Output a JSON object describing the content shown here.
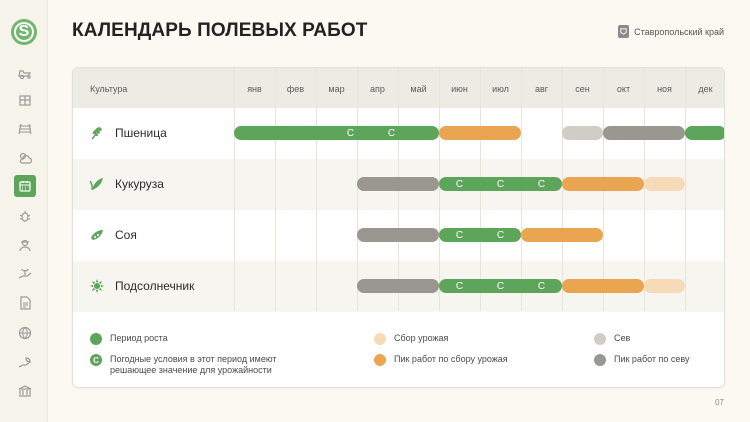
{
  "logo": {
    "letter": "S"
  },
  "title": "КАЛЕНДАРЬ ПОЛЕВЫХ РАБОТ",
  "region": "Ставропольский край",
  "page_number": "07",
  "sidebar": {
    "items": [
      {
        "icon": "tractor-icon",
        "active": false
      },
      {
        "icon": "warehouse-icon",
        "active": false
      },
      {
        "icon": "field-rows-icon",
        "active": false
      },
      {
        "icon": "weather-icon",
        "active": false
      },
      {
        "icon": "calendar-icon",
        "active": true
      },
      {
        "icon": "bug-icon",
        "active": false
      },
      {
        "icon": "farmer-icon",
        "active": false
      },
      {
        "icon": "hand-plant-icon",
        "active": false
      },
      {
        "icon": "document-icon",
        "active": false
      },
      {
        "icon": "globe-icon",
        "active": false
      },
      {
        "icon": "hand-leaf-icon",
        "active": false
      },
      {
        "icon": "bank-icon",
        "active": false
      }
    ]
  },
  "table": {
    "culture_header": "Культура",
    "months": [
      "янв",
      "фев",
      "мар",
      "апр",
      "май",
      "июн",
      "июл",
      "авг",
      "сен",
      "окт",
      "ноя",
      "дек"
    ],
    "crops": [
      {
        "name": "Пшеница",
        "icon": "wheat-icon",
        "bars": [
          {
            "start": 1,
            "end": 5,
            "type": "growth",
            "marks": [
              "С",
              "С"
            ],
            "marks_offset": 3
          },
          {
            "start": 6,
            "end": 7,
            "type": "harvest_peak"
          },
          {
            "start": 9,
            "end": 9,
            "type": "sowing"
          },
          {
            "start": 10,
            "end": 11,
            "type": "sowing_peak"
          },
          {
            "start": 12,
            "end": 12,
            "type": "growth"
          }
        ]
      },
      {
        "name": "Кукуруза",
        "icon": "corn-icon",
        "bars": [
          {
            "start": 4,
            "end": 5,
            "type": "sowing_peak"
          },
          {
            "start": 6,
            "end": 8,
            "type": "growth",
            "marks": [
              "С",
              "С",
              "С"
            ]
          },
          {
            "start": 9,
            "end": 10,
            "type": "harvest_peak"
          },
          {
            "start": 11,
            "end": 11,
            "type": "harvest"
          }
        ]
      },
      {
        "name": "Соя",
        "icon": "soy-icon",
        "bars": [
          {
            "start": 4,
            "end": 5,
            "type": "sowing_peak"
          },
          {
            "start": 6,
            "end": 7,
            "type": "growth",
            "marks": [
              "С",
              "С"
            ]
          },
          {
            "start": 8,
            "end": 9,
            "type": "harvest_peak"
          }
        ]
      },
      {
        "name": "Подсолнечник",
        "icon": "sunflower-icon",
        "bars": [
          {
            "start": 4,
            "end": 5,
            "type": "sowing_peak"
          },
          {
            "start": 6,
            "end": 8,
            "type": "growth",
            "marks": [
              "С",
              "С",
              "С"
            ]
          },
          {
            "start": 9,
            "end": 10,
            "type": "harvest_peak"
          },
          {
            "start": 11,
            "end": 11,
            "type": "harvest"
          }
        ]
      }
    ]
  },
  "colors": {
    "growth": "#5ea55c",
    "harvest": "#f5dbb8",
    "harvest_peak": "#eaa550",
    "sowing": "#cfcdc6",
    "sowing_peak": "#9a9791",
    "accent": "#5ea55c"
  },
  "legend": {
    "growth": "Период роста",
    "weather_mark": "С",
    "weather": "Погодные условия в этот период имеют решающее значение для урожайности",
    "harvest": "Сбор урожая",
    "harvest_peak": "Пик работ по сбору урожая",
    "sowing": "Сев",
    "sowing_peak": "Пик работ по севу"
  }
}
